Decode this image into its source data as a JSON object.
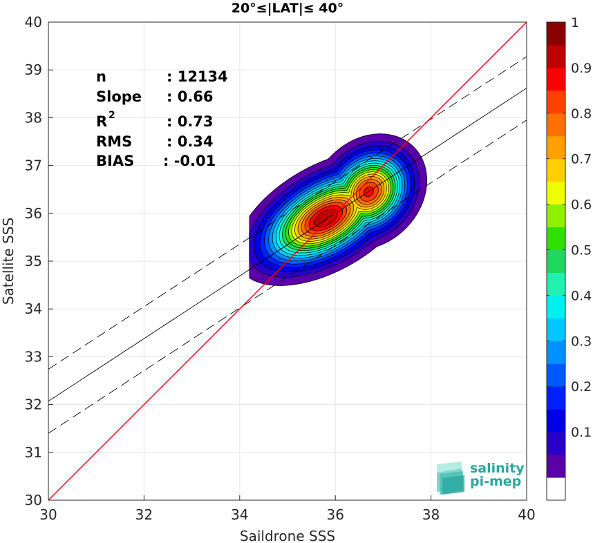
{
  "chart_data": {
    "type": "scatter",
    "title": "20°≤|LAT|≤ 40°",
    "xlabel": "Saildrone SSS",
    "ylabel": "Satellite SSS",
    "xlim": [
      30,
      40
    ],
    "ylim": [
      30,
      40
    ],
    "xticks": [
      "30",
      "32",
      "34",
      "36",
      "38",
      "40"
    ],
    "yticks": [
      "30",
      "31",
      "32",
      "33",
      "34",
      "35",
      "36",
      "37",
      "38",
      "39",
      "40"
    ],
    "grid": true,
    "stats": [
      {
        "label": "n",
        "value": ": 12134"
      },
      {
        "label": "Slope",
        "value": ": 0.66"
      },
      {
        "label": "R",
        "sup": "2",
        "value": ": 0.73"
      },
      {
        "label": "RMS",
        "value": ": 0.34"
      },
      {
        "label": "BIAS",
        "value": ": -0.01"
      }
    ],
    "lines": {
      "one_to_one": {
        "color": "#ff0000",
        "x": [
          30,
          40
        ],
        "y": [
          30,
          40
        ]
      },
      "regression": {
        "color": "#000000",
        "x": [
          30,
          40
        ],
        "y": [
          32.07,
          38.62
        ]
      },
      "upper_bound": {
        "color": "#000000",
        "dash": true,
        "x": [
          30,
          40
        ],
        "y": [
          32.74,
          39.28
        ]
      },
      "lower_bound": {
        "color": "#000000",
        "dash": true,
        "x": [
          30,
          40
        ],
        "y": [
          31.4,
          37.95
        ]
      }
    },
    "density_peaks": [
      {
        "x": 35.8,
        "y": 35.9,
        "sx": 0.85,
        "sy": 0.45,
        "angle": 30,
        "weight": 1.0
      },
      {
        "x": 36.7,
        "y": 36.45,
        "sx": 0.55,
        "sy": 0.45,
        "angle": 45,
        "weight": 0.92
      },
      {
        "x": 35.35,
        "y": 35.65,
        "sx": 0.45,
        "sy": 0.4,
        "angle": 20,
        "weight": 0.68
      }
    ],
    "colorbar": {
      "ticks": [
        "0.1",
        "0.2",
        "0.3",
        "0.4",
        "0.5",
        "0.6",
        "0.7",
        "0.8",
        "0.9",
        "1"
      ],
      "levels": [
        0,
        0.05,
        0.1,
        0.15,
        0.2,
        0.25,
        0.3,
        0.35,
        0.4,
        0.45,
        0.5,
        0.55,
        0.6,
        0.65,
        0.7,
        0.75,
        0.8,
        0.85,
        0.9,
        0.95,
        1
      ],
      "colors": [
        "#ffffff",
        "#5a00a8",
        "#2800c8",
        "#0000e6",
        "#0020ff",
        "#0058ff",
        "#0090ff",
        "#00c8ff",
        "#00f0f0",
        "#20f0b0",
        "#20d860",
        "#30e000",
        "#90f000",
        "#f0ff00",
        "#ffd000",
        "#ffa000",
        "#ff7000",
        "#ff4000",
        "#ff0000",
        "#c00000",
        "#8b0000"
      ]
    }
  },
  "logo": {
    "line1": "salinity",
    "line2": "pi-mep",
    "color": "#2aa8a0"
  }
}
